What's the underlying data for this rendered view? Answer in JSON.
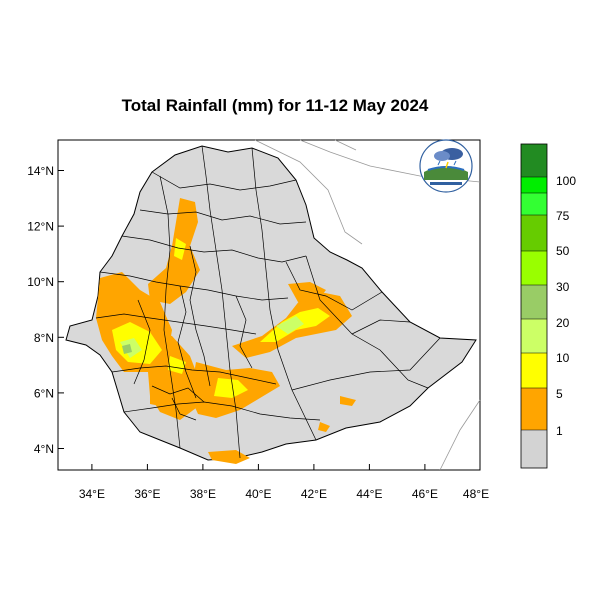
{
  "title": "Total Rainfall (mm) for 11-12 May 2024",
  "lat_labels": [
    "14°N",
    "12°N",
    "10°N",
    "8°N",
    "6°N",
    "4°N"
  ],
  "lon_labels": [
    "34°E",
    "36°E",
    "38°E",
    "40°E",
    "42°E",
    "44°E",
    "46°E",
    "48°E"
  ],
  "legend": {
    "labels": [
      "100",
      "75",
      "50",
      "30",
      "20",
      "10",
      "5",
      "1"
    ],
    "colors": [
      "#228B22",
      "#00EE00",
      "#33FF33",
      "#66CC00",
      "#99FF00",
      "#99CC66",
      "#CCFF66",
      "#FFFF00",
      "#FFA500",
      "#D3D3D3"
    ]
  },
  "map_colors": {
    "land": "#D9D9D9",
    "light_rain": "#FFA500",
    "moderate_rain": "#FFFF00",
    "heavier_rain": "#CCFF66",
    "heaviest_rain": "#99CC66"
  },
  "logo": {
    "icon": "meteorology-institute-logo"
  }
}
